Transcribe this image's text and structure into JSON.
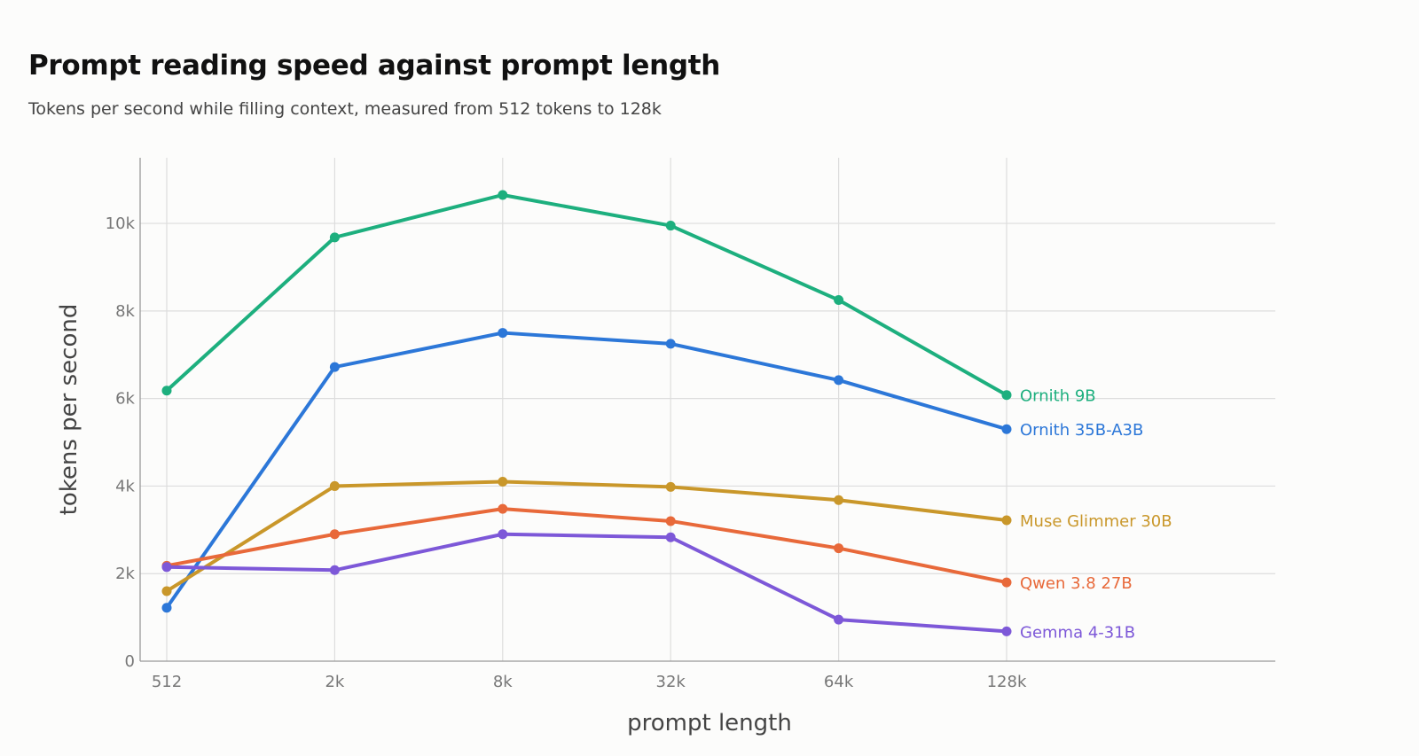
{
  "chart_data": {
    "type": "line",
    "title": "Prompt reading speed against prompt length",
    "subtitle": "Tokens per second while filling context, measured from 512 tokens to 128k",
    "xlabel": "prompt length",
    "ylabel": "tokens per second",
    "categories": [
      "512",
      "2k",
      "8k",
      "32k",
      "64k",
      "128k"
    ],
    "ylim": [
      0,
      11500
    ],
    "yticks": [
      0,
      2000,
      4000,
      6000,
      8000,
      10000
    ],
    "ytick_labels": [
      "0",
      "2k",
      "4k",
      "6k",
      "8k",
      "10k"
    ],
    "grid": true,
    "legend": "direct labels at right end of each line",
    "series": [
      {
        "name": "Ornith 9B",
        "color": "#1daf7e",
        "values": [
          6180,
          9680,
          10650,
          9950,
          8250,
          6080
        ]
      },
      {
        "name": "Ornith 35B-A3B",
        "color": "#2c77d8",
        "values": [
          1220,
          6720,
          7500,
          7250,
          6420,
          5300
        ]
      },
      {
        "name": "Muse Glimmer 30B",
        "color": "#c9972a",
        "values": [
          1600,
          4000,
          4100,
          3980,
          3680,
          3220
        ]
      },
      {
        "name": "Qwen 3.8 27B",
        "color": "#e8693a",
        "values": [
          2180,
          2900,
          3480,
          3200,
          2580,
          1800
        ]
      },
      {
        "name": "Gemma 4-31B",
        "color": "#7d58d8",
        "values": [
          2150,
          2080,
          2900,
          2830,
          950,
          680
        ]
      }
    ]
  }
}
